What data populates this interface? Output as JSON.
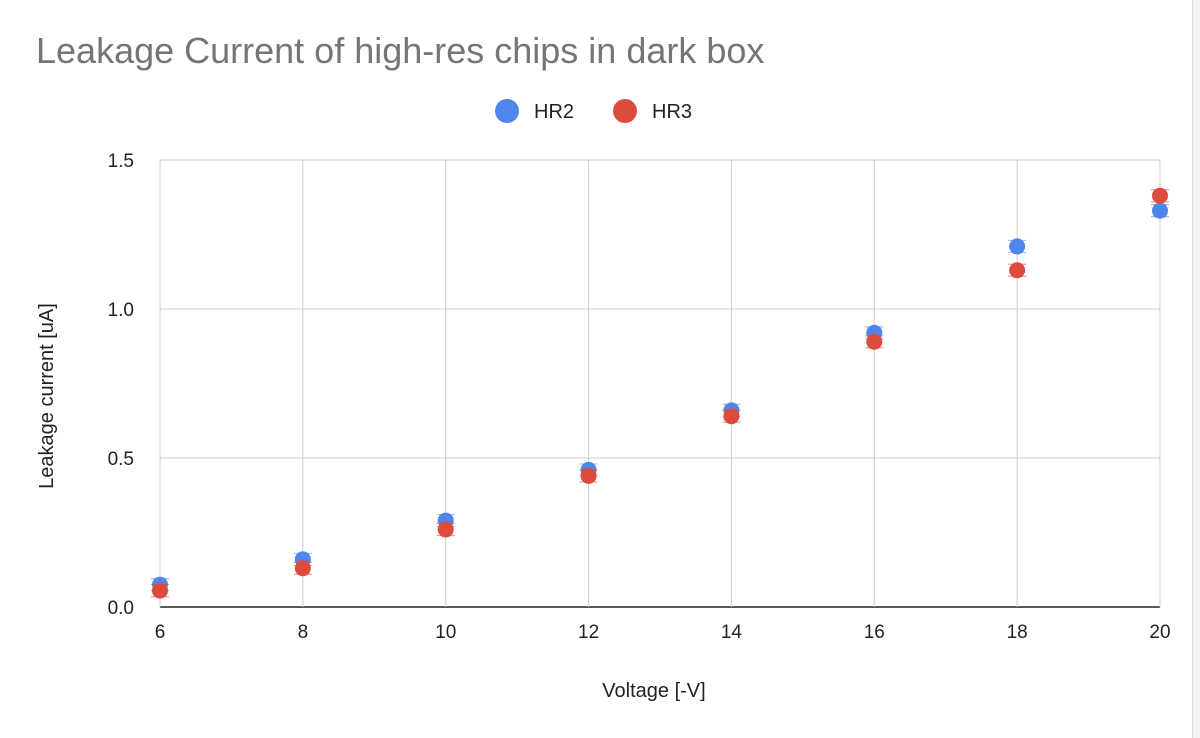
{
  "chart_data": {
    "type": "scatter",
    "title": "Leakage Current of high-res chips in dark box",
    "xlabel": "Voltage [-V]",
    "ylabel": "Leakage current [uA]",
    "xlim": [
      6,
      20
    ],
    "ylim": [
      0,
      1.5
    ],
    "x_ticks": [
      "6",
      "8",
      "10",
      "12",
      "14",
      "16",
      "18",
      "20"
    ],
    "y_ticks": [
      "0.0",
      "0.5",
      "1.0",
      "1.5"
    ],
    "grid": true,
    "legend_position": "top",
    "error_bars": true,
    "series": [
      {
        "name": "HR2",
        "color": "#4e86ec",
        "x": [
          6,
          8,
          10,
          12,
          14,
          16,
          18,
          20
        ],
        "y": [
          0.075,
          0.16,
          0.29,
          0.46,
          0.66,
          0.92,
          1.21,
          1.33
        ]
      },
      {
        "name": "HR3",
        "color": "#dc4b3c",
        "x": [
          6,
          8,
          10,
          12,
          14,
          16,
          18,
          20
        ],
        "y": [
          0.055,
          0.13,
          0.26,
          0.44,
          0.64,
          0.89,
          1.13,
          1.38
        ]
      }
    ]
  }
}
